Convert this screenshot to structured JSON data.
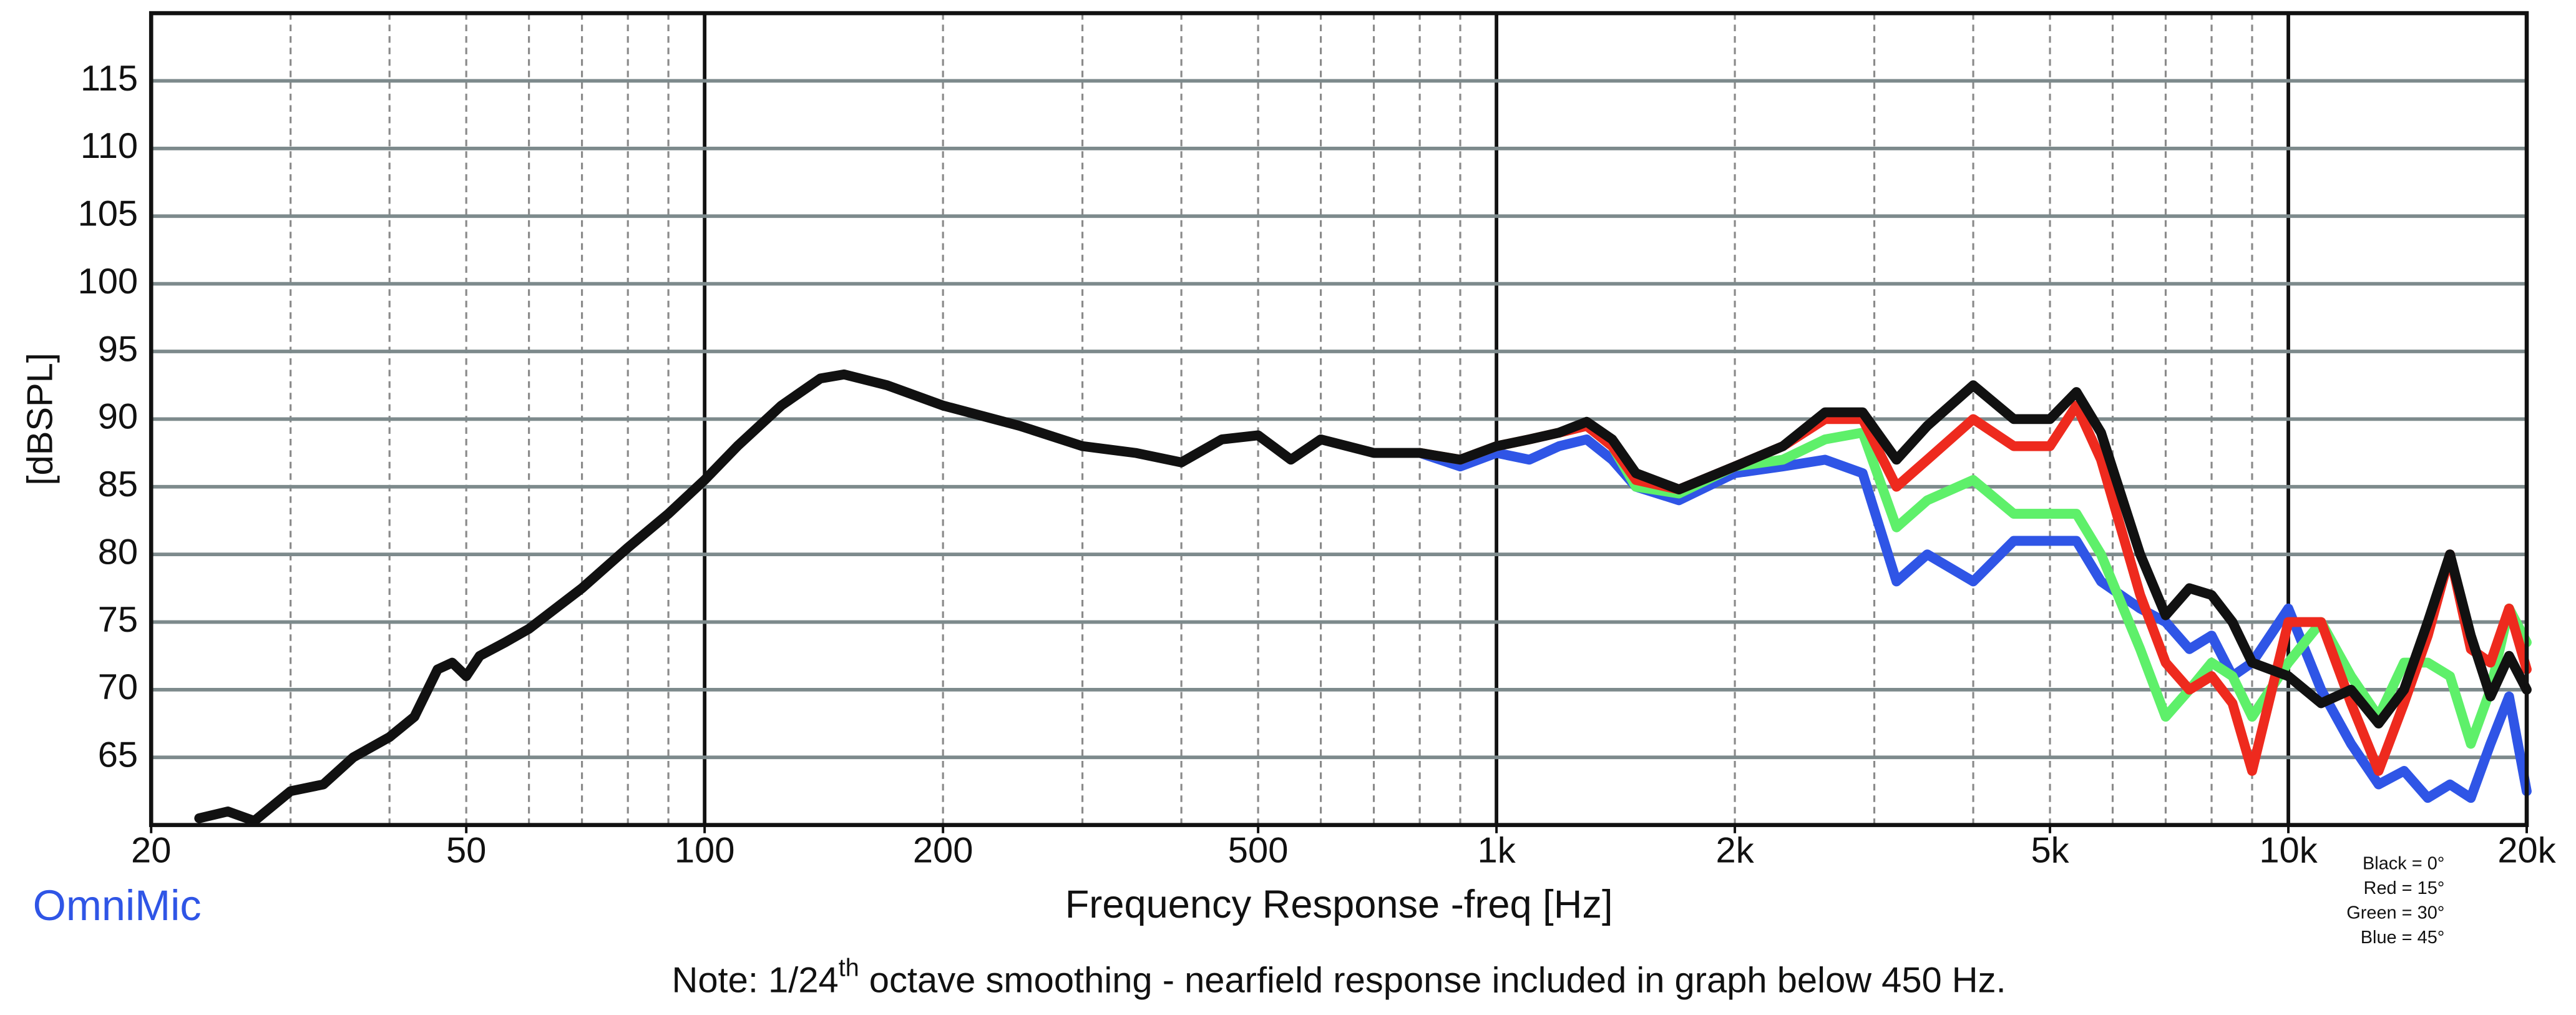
{
  "chart_data": {
    "type": "line",
    "brand": "OmniMic",
    "x_label": "Frequency Response -freq [Hz]",
    "y_label": "[dBSPL]",
    "note": {
      "before": "Note: 1/24",
      "superscript": "th",
      "after": " octave smoothing - nearfield response included in graph below 450 Hz."
    },
    "x_log": true,
    "minor_grid": true,
    "grid": true,
    "legend_position": "lower right",
    "xlim": [
      20,
      20000
    ],
    "ylim": [
      60,
      120
    ],
    "xticks": [
      20,
      50,
      100,
      200,
      500,
      {
        "value": 1000,
        "label": "1k"
      },
      {
        "value": 2000,
        "label": "2k"
      },
      {
        "value": 5000,
        "label": "5k"
      },
      {
        "value": 10000,
        "label": "10k"
      },
      {
        "value": 20000,
        "label": "20k"
      }
    ],
    "yticks": [
      65,
      70,
      75,
      80,
      85,
      90,
      95,
      100,
      105,
      110,
      115
    ],
    "x": [
      23,
      25,
      27,
      30,
      33,
      36,
      40,
      43,
      46,
      48,
      50,
      52,
      56,
      60,
      70,
      80,
      90,
      100,
      110,
      125,
      140,
      150,
      170,
      200,
      250,
      300,
      350,
      400,
      450,
      500,
      550,
      600,
      700,
      800,
      900,
      1000,
      1100,
      1200,
      1300,
      1400,
      1500,
      1700,
      2000,
      2300,
      2600,
      2900,
      3200,
      3500,
      4000,
      4500,
      5000,
      5400,
      5800,
      6500,
      7000,
      7500,
      8000,
      8500,
      9000,
      10000,
      11000,
      12000,
      13000,
      14000,
      15000,
      16000,
      17000,
      18000,
      19000,
      20000
    ],
    "series": [
      {
        "name": "Black = 0°",
        "color": "#111111",
        "values": [
          60.5,
          61,
          60.3,
          62.5,
          63,
          65,
          66.5,
          68,
          71.5,
          72,
          71,
          72.5,
          73.5,
          74.5,
          77.5,
          80.5,
          83,
          85.5,
          88,
          91,
          93,
          93.3,
          92.5,
          91,
          89.5,
          88,
          87.5,
          86.8,
          88.5,
          88.8,
          87,
          88.5,
          87.5,
          87.5,
          87,
          88,
          88.5,
          89,
          89.8,
          88.5,
          86,
          84.8,
          86.5,
          88,
          90.5,
          90.5,
          87,
          89.5,
          92.5,
          90,
          90,
          92,
          89,
          80,
          75.5,
          77.5,
          77,
          75,
          72,
          71,
          69,
          70,
          67.5,
          70,
          75,
          80,
          74,
          69.5,
          72.5,
          70
        ]
      },
      {
        "name": "Red = 15°",
        "color": "#ee2a1e",
        "values": [
          null,
          null,
          null,
          null,
          null,
          null,
          null,
          null,
          null,
          null,
          null,
          null,
          null,
          null,
          null,
          null,
          null,
          null,
          null,
          null,
          null,
          null,
          null,
          null,
          null,
          null,
          null,
          null,
          null,
          null,
          null,
          null,
          null,
          87.5,
          87,
          88,
          88.5,
          89,
          89.5,
          88,
          85.5,
          84.8,
          86.5,
          88,
          90,
          90,
          85,
          87,
          90,
          88,
          88,
          91,
          87,
          77,
          72,
          70,
          71,
          69,
          64,
          75,
          75,
          69,
          64,
          69,
          74,
          80,
          73,
          72,
          76,
          71.5
        ]
      },
      {
        "name": "Green = 30°",
        "color": "#5ef06a",
        "values": [
          null,
          null,
          null,
          null,
          null,
          null,
          null,
          null,
          null,
          null,
          null,
          null,
          null,
          null,
          null,
          null,
          null,
          null,
          null,
          null,
          null,
          null,
          null,
          null,
          null,
          null,
          null,
          null,
          null,
          null,
          null,
          null,
          null,
          87.5,
          87,
          88,
          88.5,
          89,
          89.5,
          88,
          85,
          84.5,
          86.5,
          87,
          88.5,
          89,
          82,
          84,
          85.5,
          83,
          83,
          83,
          80,
          73,
          68,
          70,
          72,
          71,
          68,
          72,
          75,
          71,
          68,
          72,
          72,
          71,
          66,
          70,
          76,
          73.5
        ]
      },
      {
        "name": "Blue = 45°",
        "color": "#2f55e6",
        "values": [
          null,
          null,
          null,
          null,
          null,
          null,
          null,
          null,
          null,
          null,
          null,
          null,
          null,
          null,
          null,
          null,
          null,
          null,
          null,
          null,
          null,
          null,
          null,
          null,
          null,
          null,
          null,
          null,
          null,
          null,
          null,
          null,
          null,
          87.5,
          86.5,
          87.5,
          87,
          88,
          88.5,
          87,
          85,
          84,
          86,
          86.5,
          87,
          86,
          78,
          80,
          78,
          81,
          81,
          81,
          78,
          76,
          75,
          73,
          74,
          71,
          72,
          76,
          70,
          66,
          63,
          64,
          62,
          63,
          62,
          66,
          69.5,
          62.5
        ]
      }
    ]
  }
}
